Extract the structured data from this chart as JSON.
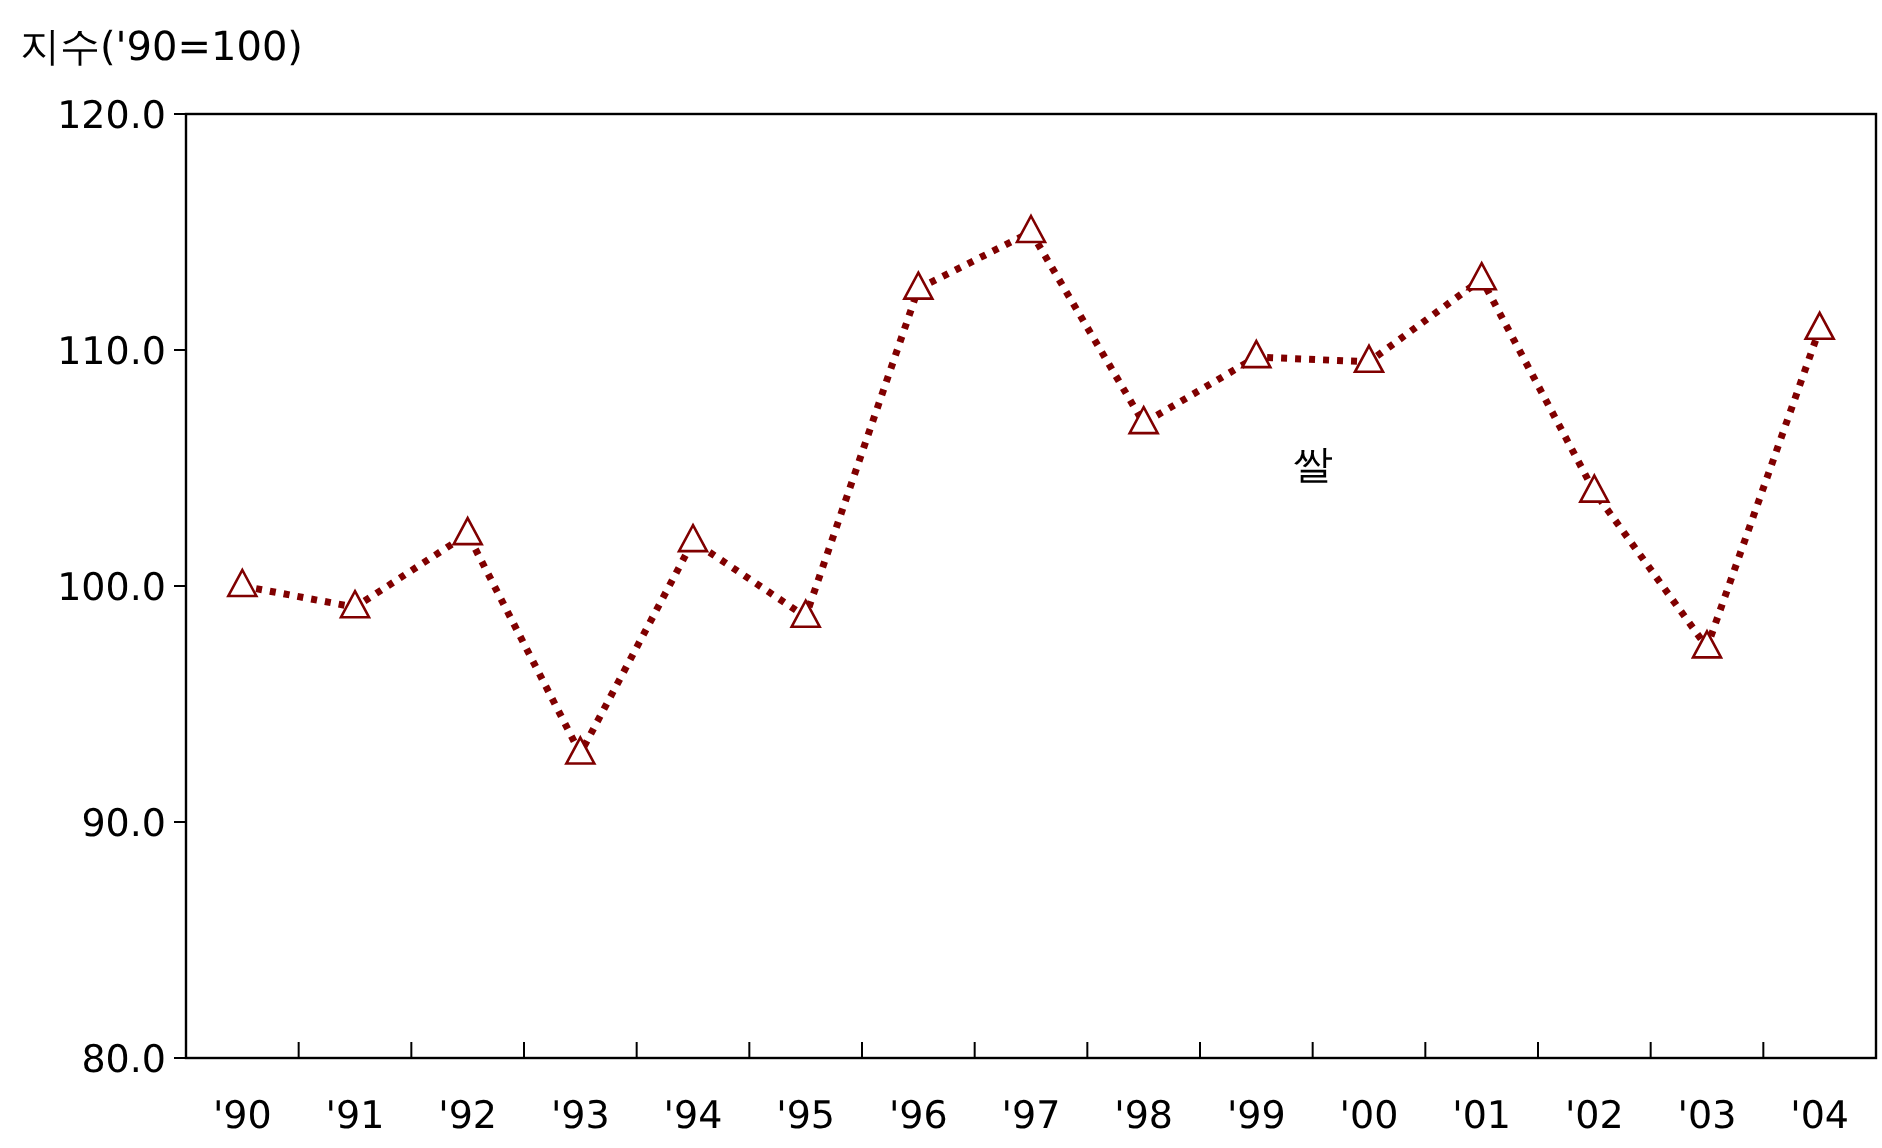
{
  "chart_data": {
    "type": "line",
    "ylabel": "지수('90=100)",
    "categories": [
      "'90",
      "'91",
      "'92",
      "'93",
      "'94",
      "'95",
      "'96",
      "'97",
      "'98",
      "'99",
      "'00",
      "'01",
      "'02",
      "'03",
      "'04"
    ],
    "series": [
      {
        "name": "쌀",
        "color": "#800000",
        "values": [
          100.0,
          99.1,
          102.2,
          92.9,
          101.9,
          98.7,
          112.6,
          115.0,
          106.9,
          109.7,
          109.5,
          113.0,
          104.0,
          97.4,
          110.9
        ]
      }
    ],
    "ylim": [
      80,
      120
    ],
    "yticks": [
      {
        "value": 80,
        "label": "80.0"
      },
      {
        "value": 90,
        "label": "90.0"
      },
      {
        "value": 100,
        "label": "100.0"
      },
      {
        "value": 110,
        "label": "110.0"
      },
      {
        "value": 120,
        "label": "120.0"
      }
    ],
    "marker": "triangle",
    "line_style": "dotted",
    "grid": false,
    "legend": false
  }
}
